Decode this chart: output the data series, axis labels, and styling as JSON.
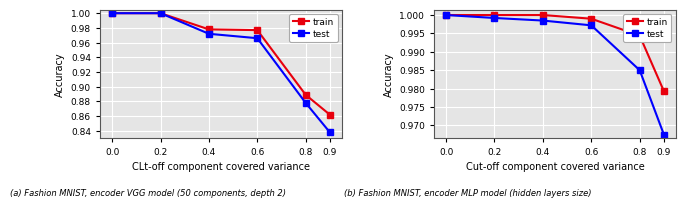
{
  "left": {
    "x": [
      0.0,
      0.2,
      0.4,
      0.6,
      0.8,
      0.9
    ],
    "train_y": [
      1.0,
      1.0,
      0.978,
      0.977,
      0.889,
      0.862
    ],
    "test_y": [
      1.0,
      1.0,
      0.972,
      0.966,
      0.878,
      0.838
    ],
    "xlabel": "CLt-off component covered variance",
    "ylabel": "Accuracy",
    "xlim": [
      -0.05,
      0.95
    ],
    "ylim": [
      0.83,
      1.005
    ],
    "yticks": [
      0.84,
      0.86,
      0.88,
      0.9,
      0.92,
      0.94,
      0.96,
      0.98,
      1.0
    ]
  },
  "right": {
    "x": [
      0.0,
      0.2,
      0.4,
      0.6,
      0.8,
      0.9
    ],
    "train_y": [
      1.0,
      1.0,
      1.0,
      0.999,
      0.9944,
      0.9793
    ],
    "test_y": [
      1.0,
      0.9992,
      0.9985,
      0.9972,
      0.985,
      0.9675
    ],
    "xlabel": "Cut-off component covered variance",
    "ylabel": "Accuracy",
    "xlim": [
      -0.05,
      0.95
    ],
    "ylim": [
      0.9665,
      1.0015
    ],
    "yticks": [
      0.97,
      0.975,
      0.98,
      0.985,
      0.99,
      0.995,
      1.0
    ]
  },
  "train_color": "#e8000d",
  "test_color": "#0000ff",
  "marker": "s",
  "linewidth": 1.5,
  "markersize": 4,
  "bg_color": "#e5e5e5",
  "grid_color": "white",
  "caption_left": "(a) Fashion MNIST, encoder VGG model (50 components, depth 2)",
  "caption_right": "(b) Fashion MNIST, encoder MLP model (hidden layers size)"
}
